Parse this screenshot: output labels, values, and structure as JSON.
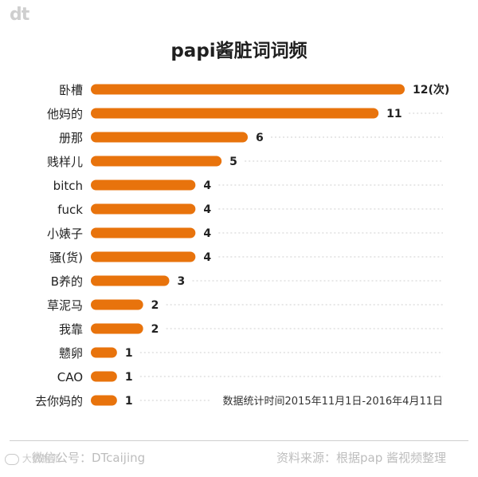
{
  "logo": "dt",
  "chart_data": {
    "type": "bar",
    "orientation": "horizontal",
    "title": "papi酱脏词词频",
    "categories": [
      "卧槽",
      "他妈的",
      "册那",
      "贱样儿",
      "bitch",
      "fuck",
      "小婊子",
      "骚(货)",
      "B养的",
      "草泥马",
      "我靠",
      "戆卵",
      "CAO",
      "去你妈的"
    ],
    "values": [
      12,
      11,
      6,
      5,
      4,
      4,
      4,
      4,
      3,
      2,
      2,
      1,
      1,
      1
    ],
    "value_labels": [
      "12(次)",
      "11",
      "6",
      "5",
      "4",
      "4",
      "4",
      "4",
      "3",
      "2",
      "2",
      "1",
      "1",
      "1"
    ],
    "xlim": [
      0,
      12
    ],
    "bar_color": "#e8730c",
    "annotation": "数据统计时间2015年11月1日-2016年4月11日"
  },
  "footer": {
    "left": "微信公号：DTcaijing",
    "right": "资料来源：根据pap 酱视频整理"
  },
  "watermark": "大数据派"
}
